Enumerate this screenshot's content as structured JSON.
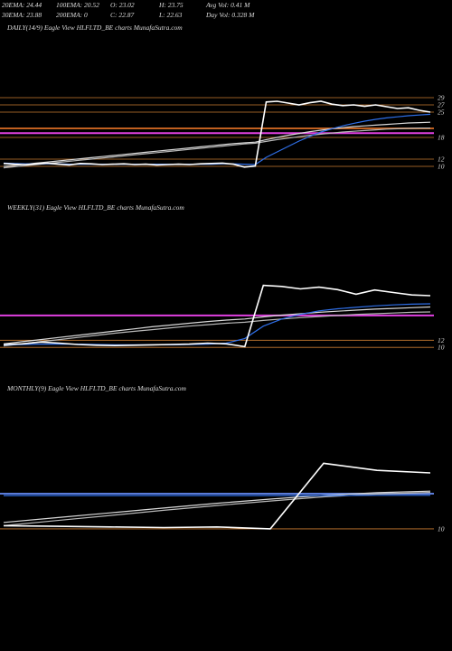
{
  "header": {
    "row1": [
      "20EMA: 24.44",
      "100EMA: 20.52",
      "O: 23.02",
      "H: 23.75",
      "Avg Vol: 0.41 M"
    ],
    "row2": [
      "30EMA: 23.88",
      "200EMA: 0",
      "C: 22.87",
      "L: 22.63",
      "Day Vol: 0.328 M"
    ]
  },
  "chart_data": [
    {
      "type": "line",
      "title": "DAILY(14/9) Eagle   View  HLFLTD_BE charts MunafaSutra.com",
      "categories": [
        null,
        null,
        null,
        null,
        null,
        null,
        null,
        null,
        null,
        null,
        null,
        null,
        null,
        null,
        null,
        null,
        null,
        null,
        null,
        null,
        null,
        null,
        null,
        null,
        null,
        null,
        null,
        null,
        null,
        null,
        null,
        null,
        null,
        null,
        null,
        null,
        null,
        null,
        null,
        null
      ],
      "series": [
        {
          "color": "#ffffff",
          "values": [
            10.8,
            10.6,
            10.5,
            10.7,
            10.9,
            10.6,
            10.4,
            10.8,
            10.7,
            10.5,
            10.6,
            10.7,
            10.5,
            10.6,
            10.4,
            10.5,
            10.6,
            10.5,
            10.7,
            10.8,
            10.9,
            10.6,
            9.8,
            10.1,
            27.8,
            28.0,
            27.5,
            27.0,
            27.6,
            28.0,
            27.2,
            26.8,
            27.0,
            26.6,
            27.0,
            26.5,
            26.0,
            26.2,
            25.5,
            25.0
          ]
        },
        {
          "color": "#2f6fe8",
          "values": [
            10.9,
            10.8,
            10.7,
            10.7,
            10.7,
            10.7,
            10.6,
            10.6,
            10.6,
            10.6,
            10.6,
            10.6,
            10.6,
            10.6,
            10.6,
            10.6,
            10.6,
            10.6,
            10.6,
            10.6,
            10.7,
            10.7,
            10.6,
            10.5,
            12.5,
            14.0,
            15.5,
            17.0,
            18.3,
            19.5,
            20.4,
            21.2,
            21.9,
            22.5,
            23.0,
            23.4,
            23.7,
            24.0,
            24.2,
            24.4
          ]
        },
        {
          "color": "#d8d8d8",
          "values": [
            10.0,
            10.3,
            10.6,
            10.9,
            11.2,
            11.5,
            11.8,
            12.1,
            12.4,
            12.7,
            13.0,
            13.3,
            13.6,
            13.9,
            14.2,
            14.5,
            14.8,
            15.1,
            15.4,
            15.7,
            16.0,
            16.3,
            16.5,
            16.7,
            17.4,
            18.0,
            18.6,
            19.1,
            19.6,
            20.0,
            20.4,
            20.7,
            21.0,
            21.2,
            21.4,
            21.6,
            21.8,
            22.0,
            22.1,
            22.2
          ]
        },
        {
          "color": "#b8b8b8",
          "values": [
            9.6,
            9.9,
            10.2,
            10.5,
            10.8,
            11.1,
            11.4,
            11.7,
            12.0,
            12.3,
            12.6,
            12.9,
            13.2,
            13.5,
            13.8,
            14.1,
            14.4,
            14.7,
            15.0,
            15.3,
            15.6,
            15.9,
            16.2,
            16.4,
            16.9,
            17.4,
            17.8,
            18.2,
            18.6,
            18.9,
            19.2,
            19.5,
            19.7,
            19.9,
            20.1,
            20.3,
            20.4,
            20.5,
            20.6,
            20.6
          ]
        }
      ],
      "reference_lines": [
        {
          "value": 19.2,
          "color": "#e040e0"
        },
        {
          "value": 20.5,
          "color": "#c06020"
        }
      ],
      "ylim": [
        8,
        31
      ],
      "yticks": [
        10,
        12,
        18,
        25,
        27,
        29
      ],
      "tick_color": "#c87a30"
    },
    {
      "type": "line",
      "title": "WEEKLY(31) Eagle   View  HLFLTD_BE charts MunafaSutra.com",
      "categories": [
        null,
        null,
        null,
        null,
        null,
        null,
        null,
        null,
        null,
        null,
        null,
        null,
        null,
        null,
        null,
        null,
        null,
        null,
        null,
        null,
        null,
        null,
        null,
        null
      ],
      "series": [
        {
          "color": "#ffffff",
          "values": [
            10.8,
            11.0,
            11.5,
            11.2,
            10.8,
            10.6,
            10.5,
            10.6,
            10.7,
            10.8,
            10.9,
            11.2,
            11.0,
            10.2,
            27.5,
            27.2,
            26.5,
            27.0,
            26.3,
            25.0,
            26.2,
            25.5,
            24.8,
            24.6
          ]
        },
        {
          "color": "#2f6fe8",
          "values": [
            10.7,
            10.8,
            10.9,
            10.9,
            10.9,
            10.8,
            10.7,
            10.7,
            10.7,
            10.7,
            10.8,
            10.9,
            11.2,
            12.5,
            16.0,
            18.0,
            19.3,
            20.3,
            20.9,
            21.3,
            21.7,
            22.0,
            22.2,
            22.3
          ]
        },
        {
          "color": "#d8d8d8",
          "values": [
            11.0,
            11.6,
            12.2,
            12.8,
            13.4,
            14.0,
            14.6,
            15.2,
            15.8,
            16.3,
            16.8,
            17.3,
            17.7,
            18.0,
            18.6,
            19.1,
            19.5,
            19.9,
            20.2,
            20.5,
            20.8,
            21.0,
            21.2,
            21.4
          ]
        },
        {
          "color": "#b8b8b8",
          "values": [
            10.4,
            11.0,
            11.6,
            12.2,
            12.8,
            13.4,
            14.0,
            14.5,
            15.0,
            15.5,
            16.0,
            16.4,
            16.8,
            17.1,
            17.6,
            18.0,
            18.4,
            18.7,
            19.0,
            19.3,
            19.5,
            19.7,
            19.9,
            20.0
          ]
        }
      ],
      "reference_lines": [
        {
          "value": 19.0,
          "color": "#e040e0"
        }
      ],
      "ylim": [
        8,
        32
      ],
      "yticks": [
        10,
        12
      ],
      "tick_color": "#c87a30"
    },
    {
      "type": "line",
      "title": "MONTHLY(9) Eagle   View  HLFLTD_BE charts MunafaSutra.com",
      "categories": [
        null,
        null,
        null,
        null,
        null,
        null,
        null,
        null,
        null
      ],
      "series": [
        {
          "color": "#ffffff",
          "values": [
            11.0,
            10.8,
            10.6,
            10.4,
            10.6,
            10.0,
            30.5,
            28.3,
            27.5
          ]
        },
        {
          "color": "#2f6fe8",
          "values": [
            20.4,
            20.4,
            20.4,
            20.4,
            20.4,
            20.4,
            20.4,
            20.5,
            20.5
          ]
        },
        {
          "color": "#d8d8d8",
          "values": [
            12.0,
            13.5,
            15.0,
            16.5,
            18.0,
            19.3,
            20.5,
            21.3,
            21.8
          ]
        },
        {
          "color": "#b8b8b8",
          "values": [
            11.0,
            12.6,
            14.2,
            15.8,
            17.3,
            18.7,
            20.0,
            20.9,
            21.4
          ]
        }
      ],
      "reference_lines": [
        {
          "value": 21.0,
          "color": "#5a7bd8"
        }
      ],
      "ylim": [
        8,
        34
      ],
      "yticks": [
        10
      ],
      "tick_color": "#c87a30"
    }
  ]
}
